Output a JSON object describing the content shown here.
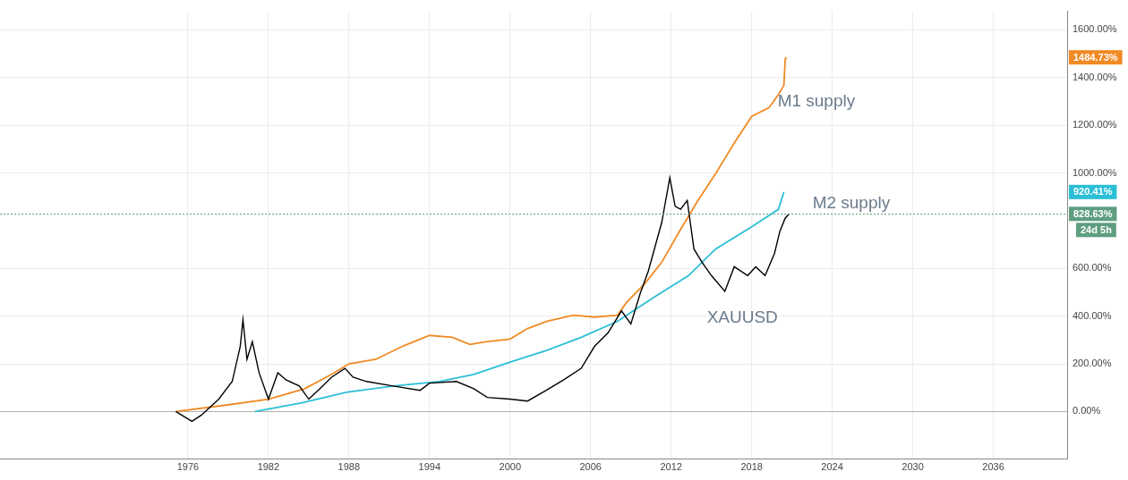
{
  "chart_data": {
    "type": "line",
    "xlim": [
      1962,
      2041.5
    ],
    "xticks": [
      1976,
      1982,
      1988,
      1994,
      2000,
      2006,
      2012,
      2018,
      2024,
      2030,
      2036
    ],
    "ylim": [
      -200,
      1678
    ],
    "yticks": [
      {
        "value": 0,
        "label": "0.00%"
      },
      {
        "value": 200,
        "label": "200.00%"
      },
      {
        "value": 400,
        "label": "400.00%"
      },
      {
        "value": 600,
        "label": "600.00%"
      },
      {
        "value": 1000,
        "label": "1000.00%"
      },
      {
        "value": 1200,
        "label": "1200.00%"
      },
      {
        "value": 1400,
        "label": "1400.00%"
      },
      {
        "value": 1600,
        "label": "1600.00%"
      }
    ],
    "grid": true,
    "annotations": [
      "24d 5h"
    ],
    "series": [
      {
        "name": "M1 supply",
        "color": "#f08a24",
        "x": [
          1975.1,
          1978.7,
          1982,
          1984.7,
          1986.7,
          1988,
          1990,
          1992,
          1994,
          1995.7,
          1997,
          1998.3,
          2000,
          2001.3,
          2002.7,
          2004.7,
          2006.3,
          2008,
          2008.7,
          2010,
          2011.3,
          2012.7,
          2014,
          2015.3,
          2016.7,
          2018,
          2019.3,
          2020,
          2020.4,
          2020.5,
          2020.6
        ],
        "values": [
          0,
          26,
          52,
          96,
          156,
          200,
          219,
          274,
          319,
          311,
          281,
          293,
          304,
          348,
          378,
          404,
          396,
          404,
          459,
          533,
          626,
          763,
          885,
          996,
          1126,
          1237,
          1274,
          1330,
          1367,
          1478,
          1484.73
        ],
        "value_labels": [
          null,
          null,
          null,
          null,
          null,
          null,
          null,
          null,
          null,
          null,
          null,
          null,
          null,
          null,
          null,
          null,
          null,
          null,
          null,
          null,
          null,
          null,
          null,
          null,
          null,
          null,
          null,
          null,
          null,
          null,
          "1484.73%"
        ]
      },
      {
        "name": "M2 supply",
        "color": "#2bbfd6",
        "x": [
          1981,
          1984.5,
          1987.8,
          1991.3,
          1994.7,
          1997.3,
          2000,
          2002.7,
          2005.3,
          2008,
          2010.7,
          2013.3,
          2015.3,
          2018,
          2020,
          2020.4
        ],
        "values": [
          0,
          37,
          81,
          107,
          126,
          156,
          207,
          256,
          311,
          378,
          478,
          570,
          681,
          774,
          848,
          920.41
        ],
        "value_labels": [
          null,
          null,
          null,
          null,
          null,
          null,
          null,
          null,
          null,
          null,
          null,
          null,
          null,
          null,
          null,
          "920.41%"
        ]
      },
      {
        "name": "XAUUSD",
        "color": "#000000",
        "x": [
          1975.1,
          1976.3,
          1977,
          1978.3,
          1979.3,
          1979.9,
          1980.1,
          1980.4,
          1980.8,
          1981.3,
          1982,
          1982.7,
          1983.3,
          1984.3,
          1985,
          1985.7,
          1986.7,
          1987.7,
          1988.3,
          1989.3,
          1991.3,
          1993.3,
          1994,
          1996,
          1997.3,
          1998.3,
          2000,
          2001.3,
          2002.7,
          2004,
          2005.3,
          2006.3,
          2007.3,
          2008.3,
          2009,
          2009.7,
          2010.3,
          2011.3,
          2011.9,
          2012.3,
          2012.7,
          2013.2,
          2013.7,
          2014.3,
          2015,
          2016,
          2016.7,
          2017.7,
          2018.3,
          2019,
          2019.7,
          2020.1,
          2020.5,
          2020.8
        ],
        "values": [
          0,
          -41,
          -15,
          52,
          126,
          274,
          385,
          219,
          293,
          163,
          52,
          163,
          133,
          107,
          52,
          89,
          144,
          181,
          144,
          126,
          107,
          89,
          119,
          126,
          96,
          59,
          52,
          44,
          89,
          133,
          181,
          274,
          330,
          422,
          367,
          496,
          589,
          793,
          980,
          860,
          848,
          885,
          681,
          626,
          570,
          504,
          607,
          570,
          607,
          570,
          663,
          756,
          811,
          828.63
        ],
        "value_labels": [
          null,
          null,
          null,
          null,
          null,
          null,
          null,
          null,
          null,
          null,
          null,
          null,
          null,
          null,
          null,
          null,
          null,
          null,
          null,
          null,
          null,
          null,
          null,
          null,
          null,
          null,
          null,
          null,
          null,
          null,
          null,
          null,
          null,
          null,
          null,
          null,
          null,
          null,
          null,
          null,
          null,
          null,
          null,
          null,
          null,
          null,
          null,
          null,
          null,
          null,
          null,
          null,
          null,
          "828.63%"
        ]
      }
    ]
  }
}
